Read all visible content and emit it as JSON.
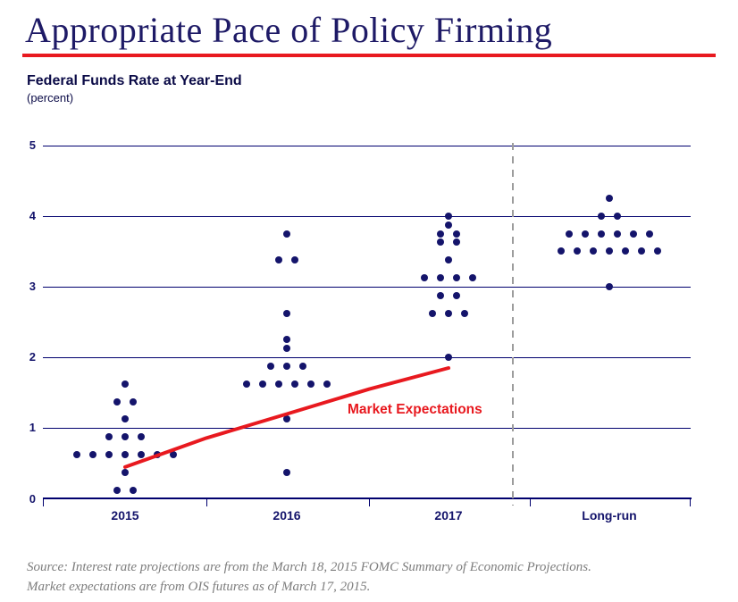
{
  "header": {
    "title": "Appropriate Pace of Policy Firming",
    "subtitle": "Federal Funds Rate at Year-End",
    "unit_label": "(percent)"
  },
  "colors": {
    "title_navy": "#1e1a66",
    "heading_navy": "#0b0b47",
    "axis_navy": "#14146b",
    "dot_navy": "#14146b",
    "grid_navy": "#00006e",
    "red": "#e8191f",
    "separator_gray": "#9c9c9c",
    "source_gray": "#7d7d7d"
  },
  "chart_data": {
    "type": "scatter",
    "subtype": "fomc-dot-plot",
    "title": "Federal Funds Rate at Year-End",
    "ylabel": "percent",
    "xlabel": "",
    "ylim": [
      0,
      5
    ],
    "yticks": [
      0,
      1,
      2,
      3,
      4,
      5
    ],
    "grid": "horizontal",
    "legend_position": "none",
    "categories": [
      "2015",
      "2016",
      "2017",
      "Long-run"
    ],
    "series": [
      {
        "category": "2015",
        "dots": [
          {
            "value": 1.625,
            "count": 1
          },
          {
            "value": 1.375,
            "count": 2
          },
          {
            "value": 1.125,
            "count": 1
          },
          {
            "value": 0.875,
            "count": 3
          },
          {
            "value": 0.625,
            "count": 7
          },
          {
            "value": 0.375,
            "count": 1
          },
          {
            "value": 0.125,
            "count": 2
          }
        ]
      },
      {
        "category": "2016",
        "dots": [
          {
            "value": 3.75,
            "count": 1
          },
          {
            "value": 3.375,
            "count": 2
          },
          {
            "value": 2.625,
            "count": 1
          },
          {
            "value": 2.25,
            "count": 1
          },
          {
            "value": 2.125,
            "count": 1
          },
          {
            "value": 1.875,
            "count": 3
          },
          {
            "value": 1.625,
            "count": 6
          },
          {
            "value": 1.125,
            "count": 1
          },
          {
            "value": 0.375,
            "count": 1
          }
        ]
      },
      {
        "category": "2017",
        "dots": [
          {
            "value": 4.0,
            "count": 1
          },
          {
            "value": 3.875,
            "count": 1
          },
          {
            "value": 3.75,
            "count": 2
          },
          {
            "value": 3.625,
            "count": 2
          },
          {
            "value": 3.375,
            "count": 1
          },
          {
            "value": 3.125,
            "count": 4
          },
          {
            "value": 2.875,
            "count": 2
          },
          {
            "value": 2.625,
            "count": 3
          },
          {
            "value": 2.0,
            "count": 1
          }
        ]
      },
      {
        "category": "Long-run",
        "dots": [
          {
            "value": 4.25,
            "count": 1
          },
          {
            "value": 4.0,
            "count": 2
          },
          {
            "value": 3.75,
            "count": 6
          },
          {
            "value": 3.5,
            "count": 7
          },
          {
            "value": 3.0,
            "count": 1
          }
        ]
      }
    ],
    "market_expectations": {
      "label": "Market Expectations",
      "points": [
        {
          "x": 140,
          "value": 0.45
        },
        {
          "x": 231,
          "value": 0.86
        },
        {
          "x": 321,
          "value": 1.2
        },
        {
          "x": 413,
          "value": 1.55
        },
        {
          "x": 502,
          "value": 1.85
        }
      ]
    },
    "separator": {
      "between": [
        "2017",
        "Long-run"
      ],
      "style": "dashed"
    }
  },
  "source": {
    "line1": "Source: Interest rate projections are from the March 18, 2015 FOMC Summary of Economic Projections.",
    "line2": "Market expectations are from OIS futures as of March 17, 2015."
  }
}
